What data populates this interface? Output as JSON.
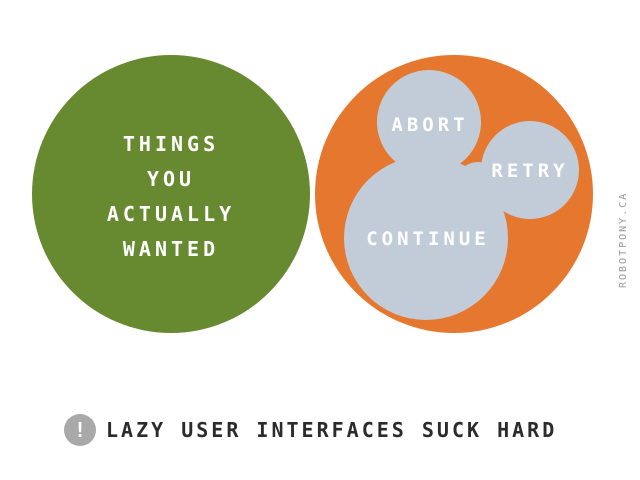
{
  "colors": {
    "wanted_circle": "#678a31",
    "options_circle": "#e5782e",
    "option_bubbles": "#c2ccd8",
    "label_text": "#ffffff",
    "caption_text": "#2b2b2b",
    "warning_icon": "#a9a9a9",
    "credit_text": "#9a9a9a"
  },
  "wanted": {
    "lines": [
      "THINGS",
      "YOU",
      "ACTUALLY",
      "WANTED"
    ]
  },
  "options": {
    "abort": "ABORT",
    "retry": "RETRY",
    "continue": "CONTINUE"
  },
  "caption": {
    "icon": "exclamation-icon",
    "icon_glyph": "!",
    "text": "LAZY USER INTERFACES SUCK HARD"
  },
  "credit": "ROBOTPONY.CA"
}
